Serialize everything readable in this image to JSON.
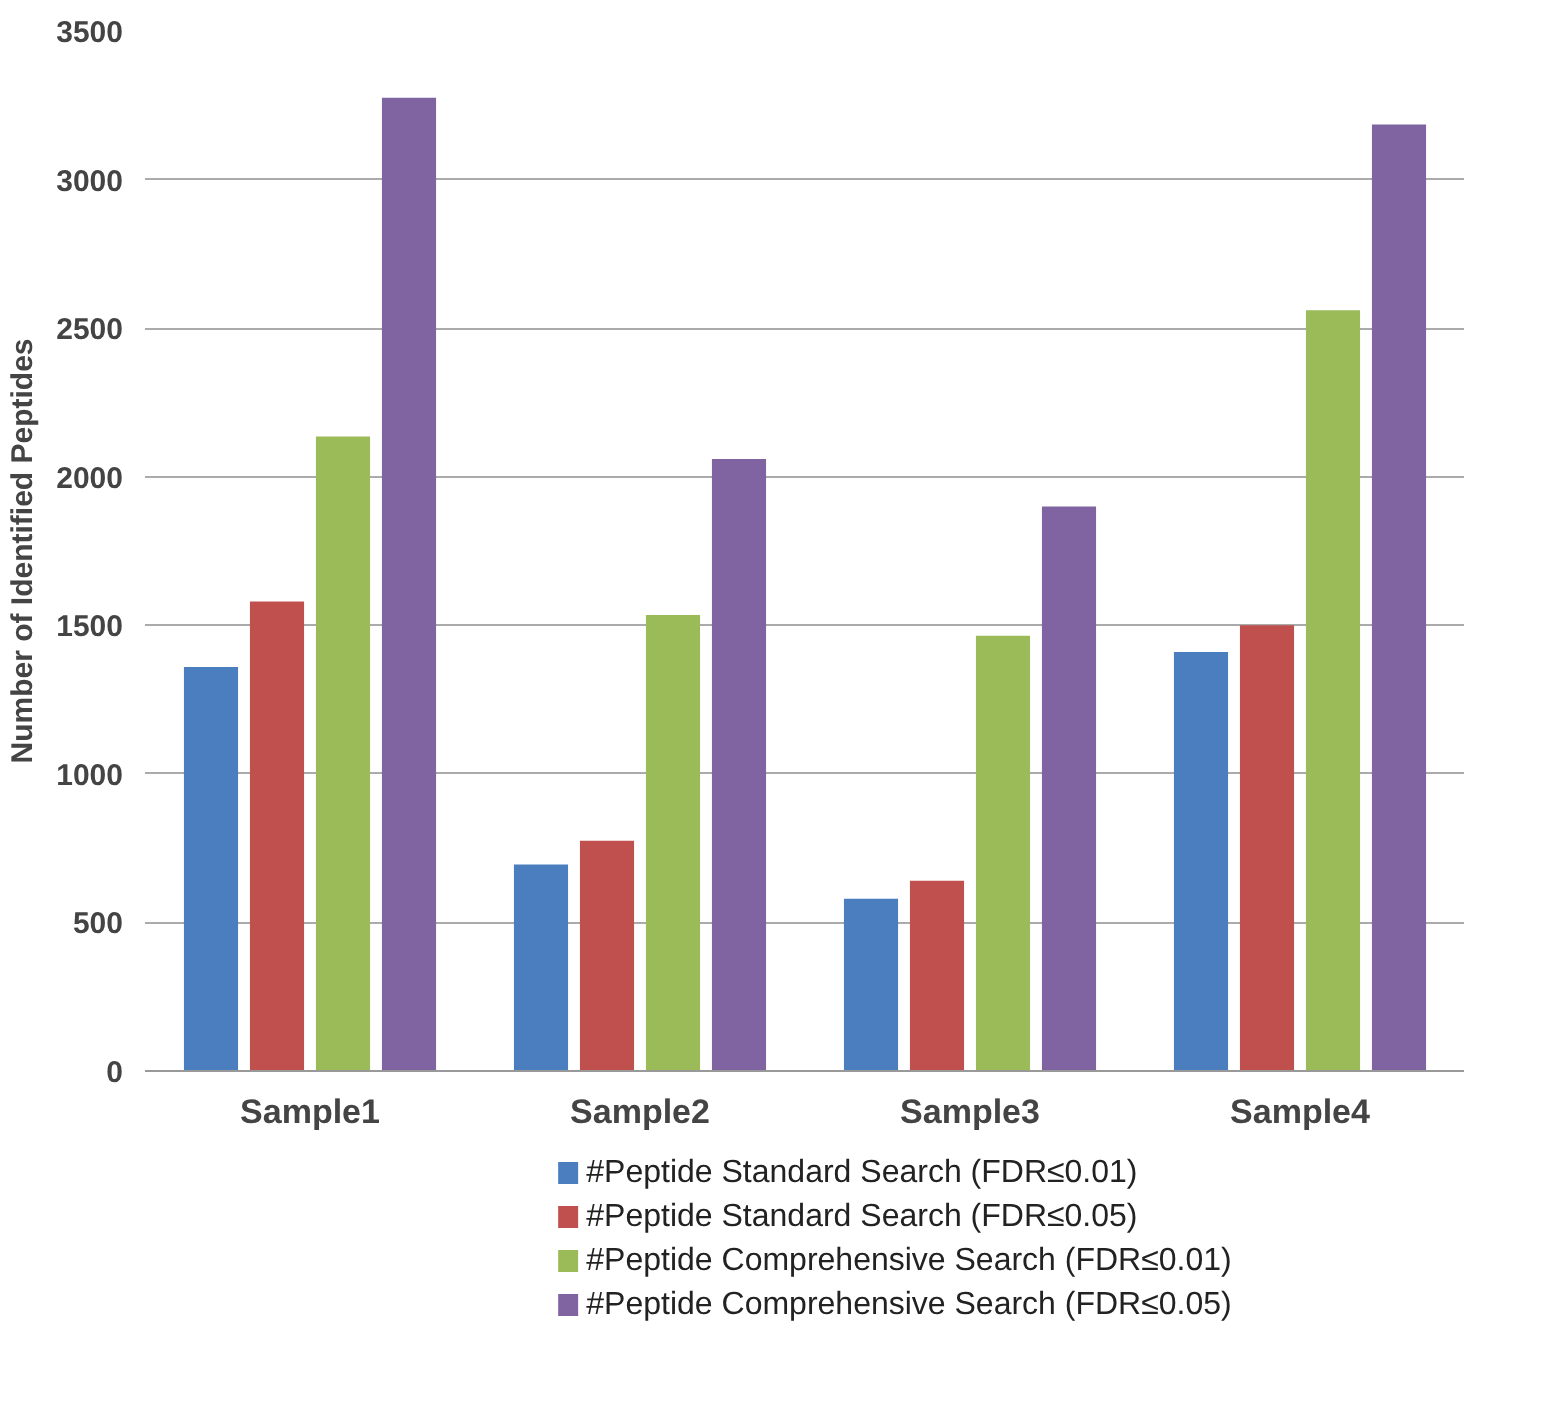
{
  "chart_data": {
    "type": "bar",
    "ylabel": "Number of Identified Peptides",
    "categories": [
      "Sample1",
      "Sample2",
      "Sample3",
      "Sample4"
    ],
    "series": [
      {
        "name": "#Peptide Standard Search (FDR≤0.01)",
        "color": "#4a7ebf",
        "values": [
          1360,
          695,
          580,
          1410
        ]
      },
      {
        "name": "#Peptide Standard Search (FDR≤0.05)",
        "color": "#c0504d",
        "values": [
          1580,
          775,
          640,
          1500
        ]
      },
      {
        "name": "#Peptide Comprehensive Search (FDR≤0.01)",
        "color": "#9bbb59",
        "values": [
          2135,
          1535,
          1465,
          2560
        ]
      },
      {
        "name": "#Peptide Comprehensive Search (FDR≤0.05)",
        "color": "#8064a2",
        "values": [
          3275,
          2060,
          1900,
          3185
        ]
      }
    ],
    "ylim": [
      0,
      3500
    ],
    "yticks": [
      0,
      500,
      1000,
      1500,
      2000,
      2500,
      3000,
      3500
    ],
    "grid": "y",
    "legend": "bottom"
  }
}
